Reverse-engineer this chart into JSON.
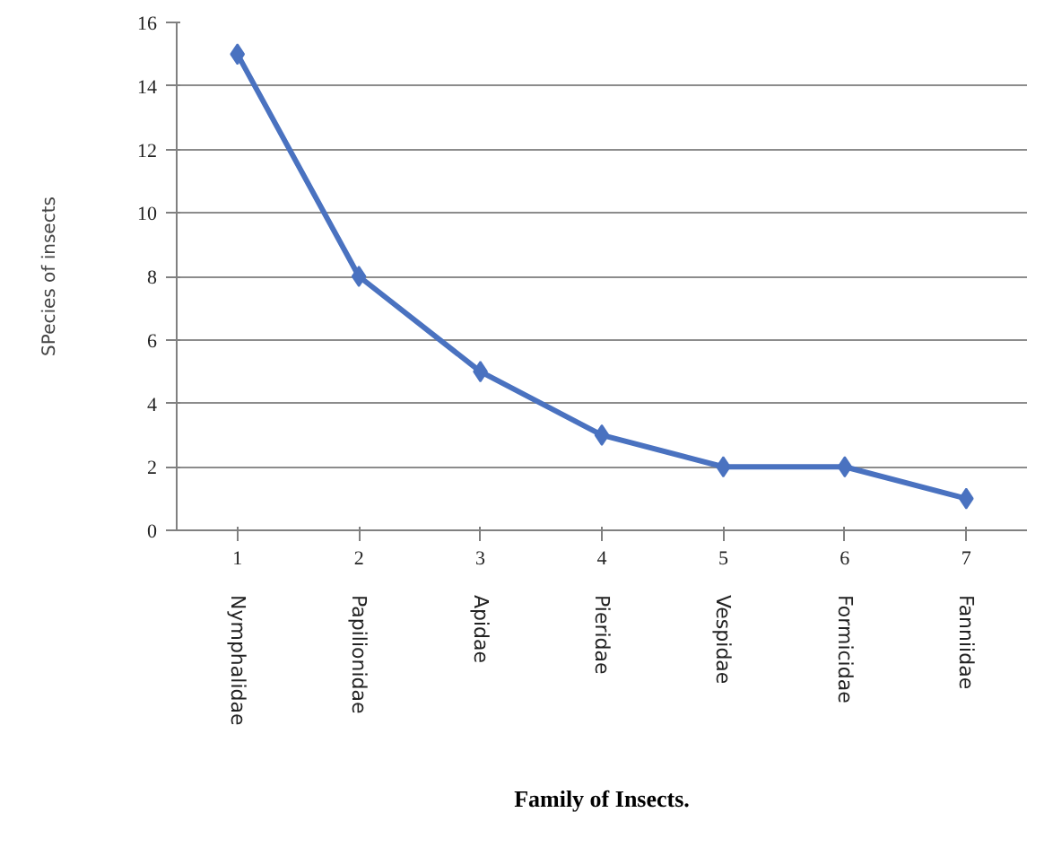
{
  "chart_data": {
    "type": "line",
    "xlabel": "Family of Insects.",
    "ylabel": "SPecies of insects",
    "categories": [
      "Nymphalidae",
      "Papilionidae",
      "Apidae",
      "Pieridae",
      "Vespidae",
      "Formicidae",
      "Fanniidae"
    ],
    "series": [
      {
        "color": "#4a72c0",
        "values": [
          15,
          8,
          5,
          3,
          2,
          2,
          1
        ]
      }
    ],
    "ylim": [
      0,
      16
    ],
    "yticks": [
      0,
      2,
      4,
      6,
      8,
      10,
      12,
      14,
      16
    ],
    "grid": "y",
    "marker": "diamond",
    "line_style": "solid",
    "annotations": [
      "1",
      "2",
      "3",
      "4",
      "5",
      "6",
      "7"
    ]
  }
}
